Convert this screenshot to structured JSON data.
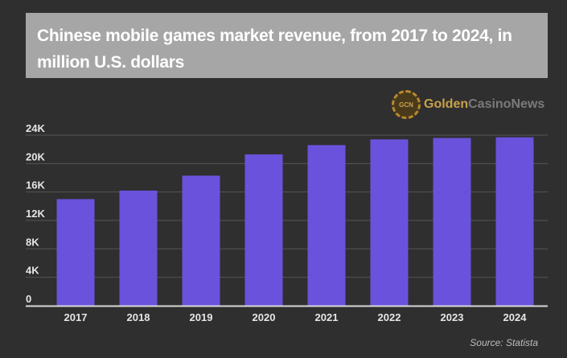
{
  "header": {
    "title": "Chinese mobile games market revenue, from 2017 to 2024, in million U.S. dollars"
  },
  "logo": {
    "chip_text": "GCN",
    "brand_part1": "Golden",
    "brand_part2": "CasinoNews"
  },
  "footer": {
    "source": "Source: Statista"
  },
  "colors": {
    "bar": "#6b52dc",
    "grid": "#555555",
    "tick_text": "#e6e6e6",
    "axis": "#d9d9d9"
  },
  "chart_data": {
    "type": "bar",
    "title": "Chinese mobile games market revenue, from 2017 to 2024, in million U.S. dollars",
    "xlabel": "",
    "ylabel": "",
    "categories": [
      "2017",
      "2018",
      "2019",
      "2020",
      "2021",
      "2022",
      "2023",
      "2024"
    ],
    "values": [
      15000,
      16200,
      18300,
      21300,
      22600,
      23400,
      23600,
      23700
    ],
    "ylim": [
      0,
      24000
    ],
    "yticks": [
      0,
      4000,
      8000,
      12000,
      16000,
      20000,
      24000
    ],
    "ytick_labels": [
      "0",
      "4K",
      "8K",
      "12K",
      "16K",
      "20K",
      "24K"
    ],
    "grid": true,
    "legend": "none"
  }
}
